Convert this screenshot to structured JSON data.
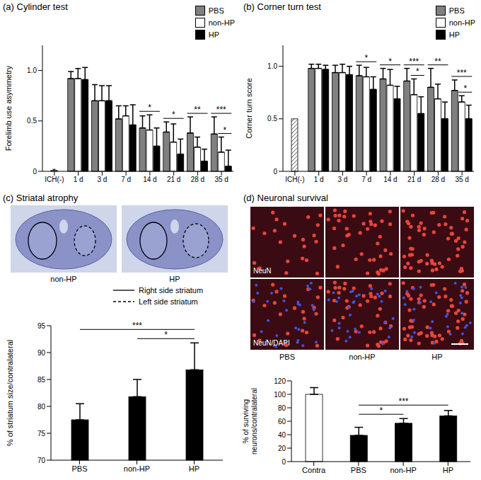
{
  "chart_data": [
    {
      "type": "bar",
      "panel": "(a)",
      "title": "Cylinder test",
      "y_label": "Forelimb use asymmetry",
      "categories": [
        "ICH(-)",
        "1 d",
        "3 d",
        "7 d",
        "14 d",
        "21 d",
        "28 d",
        "35 d"
      ],
      "series": [
        {
          "name": "PBS",
          "color": "#808080",
          "values": [
            null,
            0.92,
            0.7,
            0.52,
            0.43,
            0.39,
            0.38,
            0.37
          ],
          "errors": [
            null,
            0.07,
            0.16,
            0.13,
            0.12,
            0.1,
            0.16,
            0.17
          ]
        },
        {
          "name": "non-HP",
          "color": "#ffffff",
          "values": [
            null,
            0.92,
            0.7,
            0.55,
            0.41,
            0.29,
            0.24,
            0.19
          ],
          "errors": [
            null,
            0.1,
            0.15,
            0.1,
            0.15,
            0.18,
            0.1,
            0.15
          ]
        },
        {
          "name": "HP",
          "color": "#000000",
          "values": [
            null,
            0.91,
            0.7,
            0.46,
            0.25,
            0.17,
            0.1,
            0.05
          ],
          "errors": [
            null,
            0.12,
            0.15,
            0.2,
            0.18,
            0.15,
            0.12,
            0.16
          ]
        }
      ],
      "control": {
        "category": "ICH(-)",
        "value": 0.01,
        "error": 0.01,
        "color": "#ffffff"
      },
      "ylim": [
        0,
        1.25
      ],
      "yticks": [
        0,
        0.5,
        {
          "value": 1,
          "label": "1.0"
        }
      ],
      "legend": "top right",
      "significance": [
        {
          "category": "14 d",
          "from": "PBS",
          "to": "HP",
          "label": "*"
        },
        {
          "category": "21 d",
          "from": "PBS",
          "to": "HP",
          "label": "*"
        },
        {
          "category": "28 d",
          "from": "PBS",
          "to": "HP",
          "label": "**"
        },
        {
          "category": "35 d",
          "from": "non-HP",
          "to": "HP",
          "label": "*"
        },
        {
          "category": "35 d",
          "from": "PBS",
          "to": "HP",
          "label": "***"
        }
      ]
    },
    {
      "type": "bar",
      "panel": "(b)",
      "title": "Corner turn test",
      "y_label": "Corner turn score",
      "categories": [
        "ICH(-)",
        "1 d",
        "3 d",
        "7 d",
        "14 d",
        "21 d",
        "28 d",
        "35 d"
      ],
      "series": [
        {
          "name": "PBS",
          "color": "#808080",
          "values": [
            null,
            0.98,
            0.94,
            0.91,
            0.88,
            0.86,
            0.8,
            0.77
          ],
          "errors": [
            null,
            0.04,
            0.07,
            0.1,
            0.1,
            0.12,
            0.18,
            0.1
          ]
        },
        {
          "name": "non-HP",
          "color": "#ffffff",
          "values": [
            null,
            0.98,
            0.94,
            0.9,
            0.82,
            0.73,
            0.69,
            0.66
          ],
          "errors": [
            null,
            0.04,
            0.08,
            0.09,
            0.15,
            0.15,
            0.14,
            0.06
          ]
        },
        {
          "name": "HP",
          "color": "#000000",
          "values": [
            null,
            0.97,
            0.92,
            0.78,
            0.69,
            0.55,
            0.5,
            0.5
          ],
          "errors": [
            null,
            0.04,
            0.08,
            0.12,
            0.12,
            0.16,
            0.16,
            0.13
          ]
        }
      ],
      "control": {
        "category": "ICH(-)",
        "value": 0.5,
        "color": "#ffffff"
      },
      "ylim": [
        0,
        1.2
      ],
      "yticks": [
        0,
        0.5,
        {
          "value": 1,
          "label": "1.0"
        }
      ],
      "legend": "top right",
      "significance": [
        {
          "category": "7 d",
          "from": "PBS",
          "to": "HP",
          "label": "*"
        },
        {
          "category": "14 d",
          "from": "PBS",
          "to": "HP",
          "label": "*"
        },
        {
          "category": "21 d",
          "from": "non-HP",
          "to": "HP",
          "label": "*"
        },
        {
          "category": "21 d",
          "from": "PBS",
          "to": "HP",
          "label": "***"
        },
        {
          "category": "28 d",
          "from": "PBS",
          "to": "HP",
          "label": "**"
        },
        {
          "category": "35 d",
          "from": "non-HP",
          "to": "HP",
          "label": "*"
        },
        {
          "category": "35 d",
          "from": "PBS",
          "to": "HP",
          "label": "***"
        }
      ]
    },
    {
      "type": "bar",
      "panel": "(c)",
      "title": "Striatal atrophy",
      "y_label": "% of striatum size/contralateral",
      "categories": [
        "PBS",
        "non-HP",
        "HP"
      ],
      "values": [
        77.5,
        81.8,
        86.8
      ],
      "errors": [
        3.0,
        3.2,
        5.0
      ],
      "color": "#000000",
      "ylim": [
        70,
        95
      ],
      "yticks": [
        70,
        75,
        80,
        85,
        90,
        95
      ],
      "significance": [
        {
          "from": "non-HP",
          "to": "HP",
          "label": "*"
        },
        {
          "from": "PBS",
          "to": "HP",
          "label": "***"
        }
      ],
      "images": {
        "labels": [
          "non-HP",
          "HP"
        ],
        "legend": [
          {
            "label": "Right side striatum",
            "line_style": "solid"
          },
          {
            "label": "Left side striatum",
            "line_style": "dashed"
          }
        ]
      }
    },
    {
      "type": "bar",
      "panel": "(d)",
      "title": "Neuronal survival",
      "y_label": "% of surviving neurons/contralateral",
      "categories": [
        "Contra",
        "PBS",
        "non-HP",
        "HP"
      ],
      "values": [
        100,
        39,
        57,
        68
      ],
      "errors": [
        10,
        12,
        7,
        8
      ],
      "colors": [
        "#ffffff",
        "#000000",
        "#000000",
        "#000000"
      ],
      "ylim": [
        0,
        120
      ],
      "yticks": [
        0,
        20,
        40,
        60,
        80,
        100,
        120
      ],
      "significance": [
        {
          "from": "PBS",
          "to": "non-HP",
          "label": "*"
        },
        {
          "from": "PBS",
          "to": "HP",
          "label": "***"
        }
      ],
      "images": {
        "rows": [
          "NeuN",
          "NeuN/DAPI"
        ],
        "columns": [
          "PBS",
          "non-HP",
          "HP"
        ]
      }
    }
  ]
}
